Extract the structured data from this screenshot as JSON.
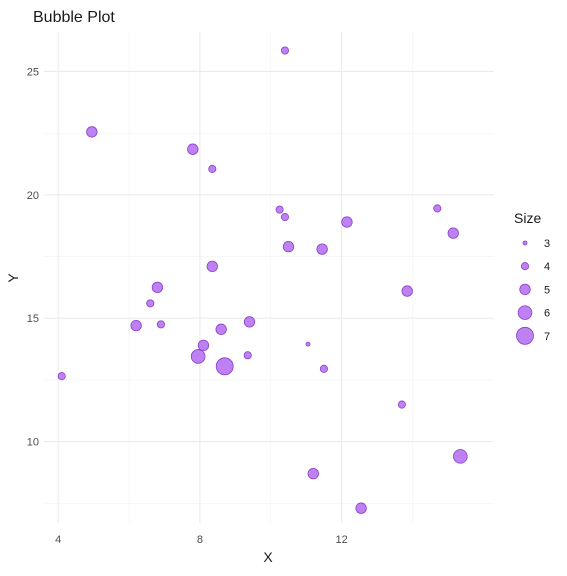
{
  "chart_data": {
    "type": "scatter",
    "title": "Bubble Plot",
    "xlabel": "X",
    "ylabel": "Y",
    "xlim": [
      3.6,
      16.3
    ],
    "ylim": [
      6.7,
      26.6
    ],
    "x_ticks": [
      4,
      8,
      12
    ],
    "x_tick_labels": [
      "4",
      "8",
      "12"
    ],
    "x_minor_gridlines": [
      6,
      10,
      14
    ],
    "y_ticks": [
      10,
      15,
      20,
      25
    ],
    "y_tick_labels": [
      "10",
      "15",
      "20",
      "25"
    ],
    "y_minor_gridlines": [
      7.5,
      12.5,
      17.5,
      22.5
    ],
    "grid": true,
    "legend": {
      "title": "Size",
      "position": "right",
      "values": [
        3,
        4,
        5,
        6,
        7
      ],
      "labels": [
        "3",
        "4",
        "5",
        "6",
        "7"
      ]
    },
    "marker_color": "#b36bf2",
    "marker_stroke": "#8a3fc9",
    "points": [
      {
        "x": 10.4,
        "y": 25.85,
        "size": 4
      },
      {
        "x": 4.95,
        "y": 22.55,
        "size": 5
      },
      {
        "x": 7.8,
        "y": 21.85,
        "size": 5
      },
      {
        "x": 8.35,
        "y": 21.05,
        "size": 4
      },
      {
        "x": 10.25,
        "y": 19.4,
        "size": 4
      },
      {
        "x": 10.4,
        "y": 19.1,
        "size": 4
      },
      {
        "x": 12.15,
        "y": 18.9,
        "size": 5
      },
      {
        "x": 14.7,
        "y": 19.45,
        "size": 4
      },
      {
        "x": 15.15,
        "y": 18.45,
        "size": 5
      },
      {
        "x": 10.5,
        "y": 17.9,
        "size": 5
      },
      {
        "x": 11.45,
        "y": 17.8,
        "size": 5
      },
      {
        "x": 8.35,
        "y": 17.1,
        "size": 5
      },
      {
        "x": 6.8,
        "y": 16.25,
        "size": 5
      },
      {
        "x": 13.85,
        "y": 16.1,
        "size": 5
      },
      {
        "x": 6.6,
        "y": 15.6,
        "size": 4
      },
      {
        "x": 6.2,
        "y": 14.7,
        "size": 5
      },
      {
        "x": 6.9,
        "y": 14.75,
        "size": 4
      },
      {
        "x": 8.6,
        "y": 14.55,
        "size": 5
      },
      {
        "x": 9.4,
        "y": 14.85,
        "size": 5
      },
      {
        "x": 8.1,
        "y": 13.9,
        "size": 5
      },
      {
        "x": 7.95,
        "y": 13.45,
        "size": 6
      },
      {
        "x": 8.7,
        "y": 13.05,
        "size": 7
      },
      {
        "x": 9.35,
        "y": 13.5,
        "size": 4
      },
      {
        "x": 11.05,
        "y": 13.95,
        "size": 3
      },
      {
        "x": 11.5,
        "y": 12.95,
        "size": 4
      },
      {
        "x": 4.1,
        "y": 12.65,
        "size": 4
      },
      {
        "x": 13.7,
        "y": 11.5,
        "size": 4
      },
      {
        "x": 15.35,
        "y": 9.4,
        "size": 6
      },
      {
        "x": 11.2,
        "y": 8.7,
        "size": 5
      },
      {
        "x": 12.55,
        "y": 7.3,
        "size": 5
      }
    ]
  }
}
